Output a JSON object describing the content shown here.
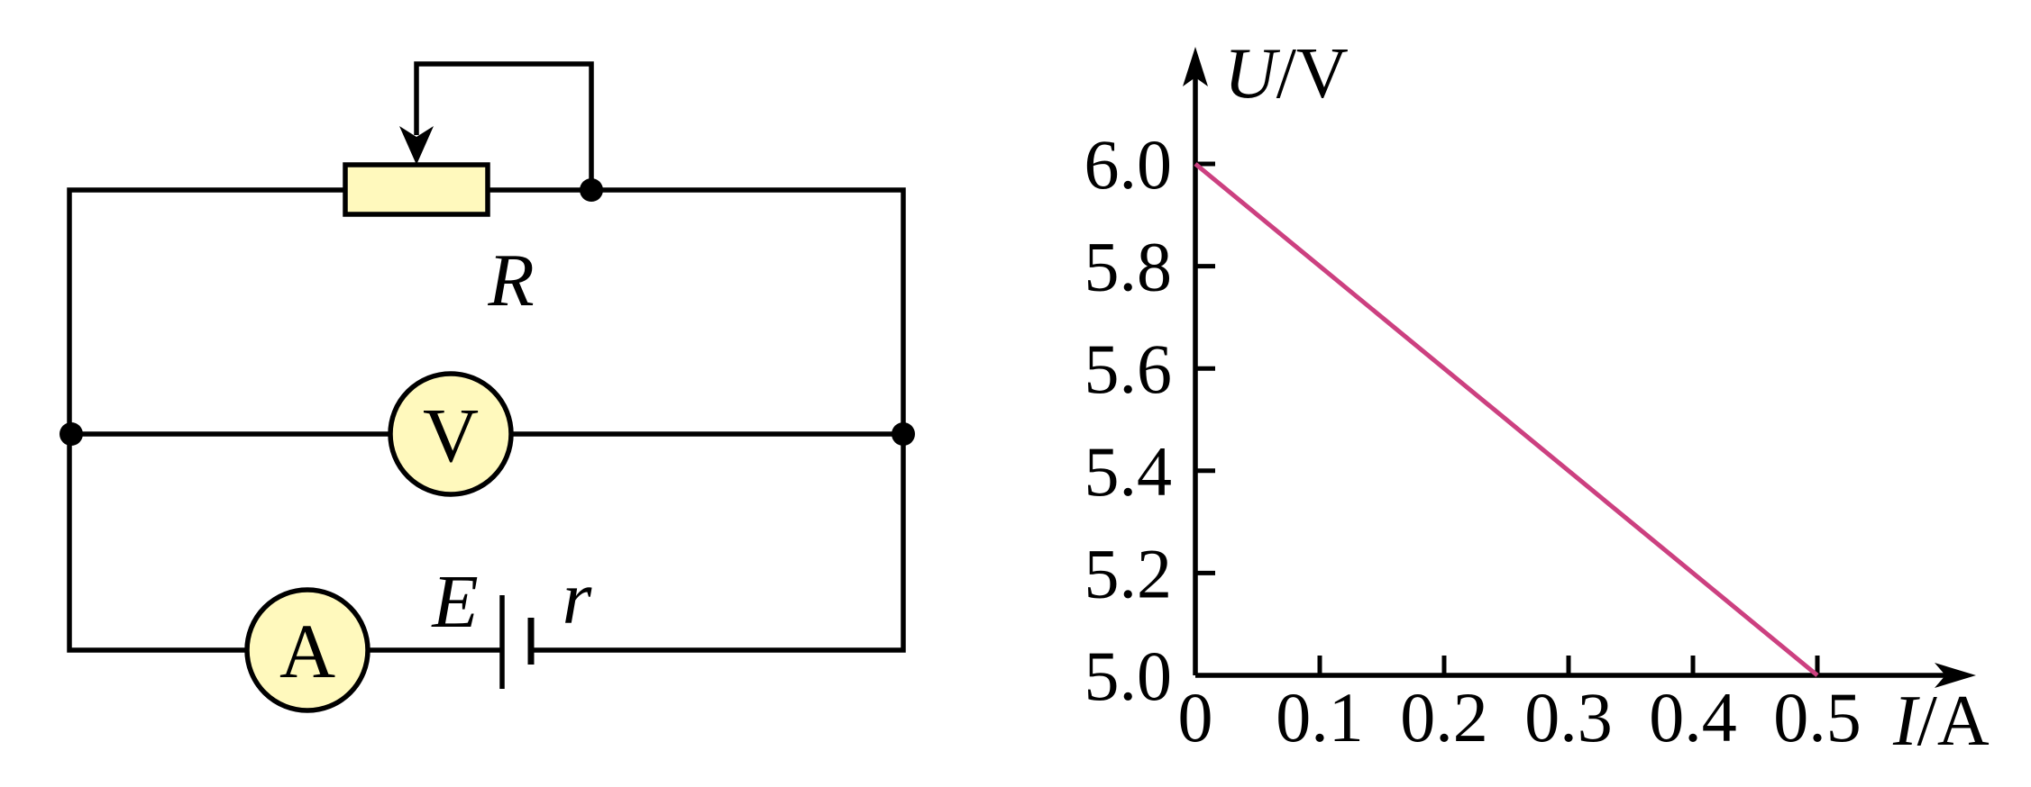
{
  "circuit": {
    "resistor_label": "R",
    "voltmeter_label": "V",
    "ammeter_label": "A",
    "emf_label": "E",
    "internal_resistance_label": "r",
    "meter_fill": "#fff9bd",
    "resistor_fill": "#fff9bd"
  },
  "chart_data": {
    "type": "line",
    "xlabel_var": "I",
    "xlabel_unit": "/A",
    "ylabel_var": "U",
    "ylabel_unit": "/V",
    "xlim": [
      0,
      0.5
    ],
    "ylim": [
      5.0,
      6.0
    ],
    "x_ticks": [
      0,
      0.1,
      0.2,
      0.3,
      0.4,
      0.5
    ],
    "x_tick_labels": [
      "0",
      "0.1",
      "0.2",
      "0.3",
      "0.4",
      "0.5"
    ],
    "y_ticks": [
      5.0,
      5.2,
      5.4,
      5.6,
      5.8,
      6.0
    ],
    "y_tick_labels": [
      "5.0",
      "5.2",
      "5.4",
      "5.6",
      "5.8",
      "6.0"
    ],
    "series": [
      {
        "x": [
          0,
          0.5
        ],
        "y": [
          6.0,
          5.0
        ],
        "color": "#cc4080"
      }
    ],
    "grid": false
  }
}
